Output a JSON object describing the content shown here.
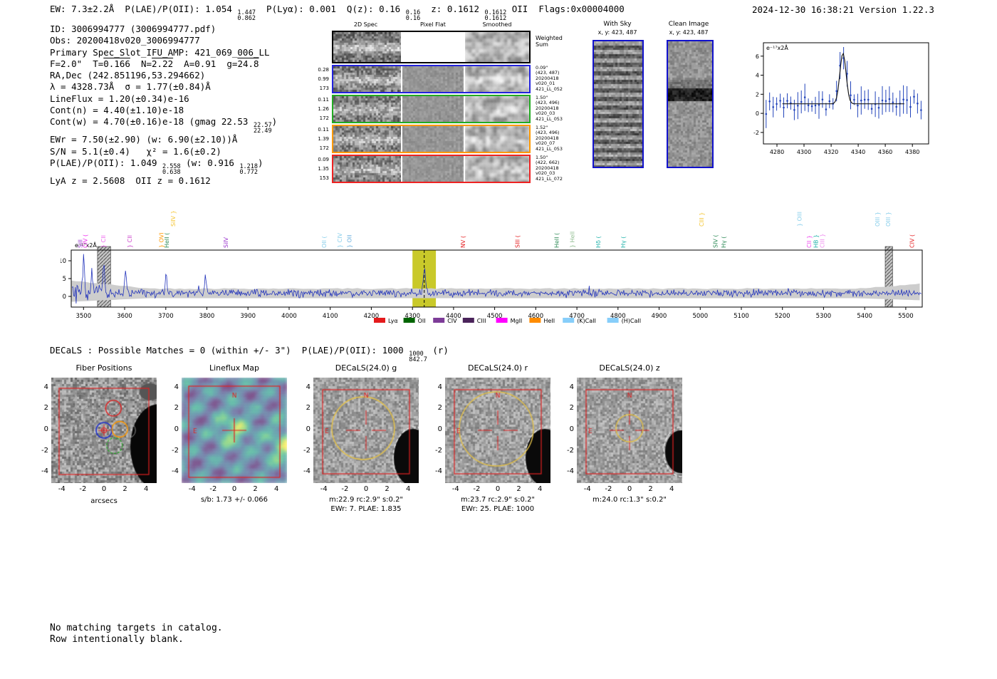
{
  "header": {
    "tokens": [
      {
        "t": "EW: 7.3±2.2Å  P(LAE)/P(OII): 1.054 "
      },
      {
        "s": [
          "1.447",
          "0.862"
        ]
      },
      {
        "t": "  P(Lyα): 0.001  Q(z): 0.16 "
      },
      {
        "s": [
          "0.16",
          "0.16"
        ]
      },
      {
        "t": "  z: 0.1612 "
      },
      {
        "s": [
          "0.1612",
          "0.1612"
        ]
      },
      {
        "t": " OII  Flags:0x00004000"
      }
    ],
    "timestamp": "2024-12-30 16:38:21  Version 1.22.3"
  },
  "info": {
    "lines": [
      [
        {
          "t": "ID: 3006994777 (3006994777.pdf)"
        }
      ],
      [
        {
          "t": "Obs: 20200418v020_3006994777"
        }
      ],
      [
        {
          "t": "Primary Spec_Slot_IFU_AMP: 421_069_006_LL"
        }
      ],
      [
        {
          "t": "F=2.0\"  T="
        },
        {
          "o": "0.166"
        },
        {
          "t": "  N="
        },
        {
          "o": "2.22"
        },
        {
          "t": "  A=0.91  g="
        },
        {
          "o": "24.8"
        }
      ],
      [
        {
          "t": "RA,Dec (242.851196,53.294662)"
        }
      ],
      [
        {
          "t": "λ = 4328.73Å  σ = 1.77(±0.84)Å"
        }
      ],
      [
        {
          "t": "LineFlux = 1.20(±0.34)e-16"
        }
      ],
      [
        {
          "t": "Cont(n) = 4.40(±1.10)e-18"
        }
      ],
      [
        {
          "t": "Cont(w) = 4.70(±0.16)e-18 (gmag 22.53 "
        },
        {
          "s": [
            "22.57",
            "22.49"
          ]
        },
        {
          "t": ")"
        }
      ],
      [
        {
          "t": "EWr = 7.50(±2.90) (w: 6.90(±2.10))Å"
        }
      ],
      [
        {
          "t": "S/N = 5.1(±0.4)   χ² = 1.6(±0.2)"
        }
      ],
      [
        {
          "t": "P(LAE)/P(OII): 1.049 "
        },
        {
          "s": [
            "2.558",
            "0.638"
          ]
        },
        {
          "t": " (w: 0.916 "
        },
        {
          "s": [
            "1.218",
            "0.772"
          ]
        },
        {
          "t": ")"
        }
      ],
      [
        {
          "t": "LyA z = 2.5608  OII z = 0.1612"
        }
      ]
    ]
  },
  "spec2d": {
    "col_titles": [
      "2D Spec",
      "Pixel Flat",
      "Smoothed"
    ],
    "weighted_label": [
      "Weighted",
      "Sum"
    ],
    "rows": [
      {
        "left": [
          "0.28",
          "0.99",
          "173"
        ],
        "right": [
          "0.09\"",
          "(423, 487)",
          "20200418",
          "v020_01",
          "421_LL_052"
        ],
        "color": "#2222dd"
      },
      {
        "left": [
          "0.11",
          "1.26",
          "172"
        ],
        "right": [
          "1.50\"",
          "(423, 496)",
          "20200418",
          "v020_03",
          "421_LL_053"
        ],
        "color": "#22aa22"
      },
      {
        "left": [
          "0.11",
          "1.39",
          "172"
        ],
        "right": [
          "1.52\"",
          "(423, 496)",
          "20200418",
          "v020_07",
          "421_LL_053"
        ],
        "color": "#ff9900"
      },
      {
        "left": [
          "0.09",
          "1.35",
          "153"
        ],
        "right": [
          "1.50\"",
          "(422, 662)",
          "20200418",
          "v020_03",
          "421_LL_072"
        ],
        "color": "#ee2222"
      }
    ]
  },
  "withsky": {
    "title": "With Sky",
    "coords": "x, y: 423, 487"
  },
  "clean": {
    "title": "Clean Image",
    "coords": "x, y: 423, 487"
  },
  "decals": {
    "tokens": [
      {
        "t": "DECaLS : Possible Matches = 0 (within +/- 3\")  P(LAE)/P(OII): 1000 "
      },
      {
        "s": [
          "1000",
          "842.7"
        ]
      },
      {
        "t": " (r)"
      }
    ]
  },
  "cutouts": {
    "axis_ticks": [
      "-4",
      "-2",
      "0",
      "2",
      "4"
    ],
    "panels": [
      {
        "title": "Fiber Positions",
        "xlabel": "arcsecs",
        "captions": []
      },
      {
        "title": "Lineflux Map",
        "captions": [
          "s/b: 1.73 +/- 0.066"
        ]
      },
      {
        "title": "DECaLS(24.0) g",
        "captions": [
          "m:22.9 rc:2.9\"  s:0.2\"",
          "EWr: 7. PLAE: 1.835"
        ]
      },
      {
        "title": "DECaLS(24.0) r",
        "captions": [
          "m:23.7 rc:2.9\"  s:0.2\"",
          "EWr: 25. PLAE: 1000"
        ]
      },
      {
        "title": "DECaLS(24.0) z",
        "captions": [
          "m:24.0 rc:1.3\"  s:0.2\""
        ]
      }
    ]
  },
  "footer": {
    "lines": [
      "No matching targets in catalog.",
      "Row intentionally blank."
    ]
  },
  "chart_data": [
    {
      "type": "scatter",
      "name": "emission-line-fit-zoom",
      "annotation": "e⁻¹⁷x2Å",
      "xlim": [
        4270,
        4392
      ],
      "ylim": [
        -3.2,
        7.4
      ],
      "xticks": [
        4280,
        4300,
        4320,
        4340,
        4360,
        4380
      ],
      "yticks": [
        -2,
        0,
        2,
        4,
        6
      ],
      "fit": {
        "center": 4328.73,
        "sigma": 2.3,
        "amplitude": 5.3,
        "baseline": 1.0
      },
      "reported_line": {
        "wavelength": 4328.73,
        "sigma": 1.77,
        "lineflux": "1.20e-16",
        "snr": 5.1
      },
      "point_color": "#2244bb",
      "fit_color": "#1a1a1a"
    },
    {
      "type": "line",
      "name": "full-spectrum",
      "annotation": "e⁻¹⁷x2Å",
      "xlim": [
        3470,
        5540
      ],
      "ylim": [
        -3,
        13
      ],
      "xticks": [
        3500,
        3600,
        3700,
        3800,
        3900,
        4000,
        4100,
        4200,
        4300,
        4400,
        4500,
        4600,
        4700,
        4800,
        4900,
        5000,
        5100,
        5200,
        5300,
        5400,
        5500
      ],
      "yticks": [
        0,
        5,
        10
      ],
      "trace_color": "#2233bb",
      "noise_band_color": "#cdcdcd",
      "highlight_band": {
        "x0": 4300,
        "x1": 4357,
        "color": "#c9c92a"
      },
      "hatch_bands": [
        [
          3534,
          3566
        ],
        [
          5450,
          5468
        ]
      ],
      "vline": 4328.73,
      "peaks": [
        [
          3500,
          10.5,
          2.2
        ],
        [
          3521,
          6.5,
          2
        ],
        [
          3549,
          7.5,
          2
        ],
        [
          3602,
          6.8,
          2
        ],
        [
          3701,
          5.6,
          2
        ],
        [
          3797,
          4.6,
          2
        ],
        [
          4328.73,
          6.3,
          3
        ]
      ],
      "line_labels": [
        {
          "x": 3497,
          "text": "SiII",
          "color": "#9933cc",
          "row": 0
        },
        {
          "x": 3509,
          "text": "CIV (",
          "color": "#ee22ee",
          "row": 0
        },
        {
          "x": 3553,
          "text": "} CII",
          "color": "#ee66ee",
          "row": 0
        },
        {
          "x": 3617,
          "text": "} CII",
          "color": "#cc44cc",
          "row": 0
        },
        {
          "x": 3694,
          "text": "} OVI",
          "color": "#ff9900",
          "row": 0
        },
        {
          "x": 3707,
          "text": "HeII (",
          "color": "#2e8b57",
          "row": 0
        },
        {
          "x": 3723,
          "text": "SiIV }",
          "color": "#f4c430",
          "row": 1
        },
        {
          "x": 3851,
          "text": "SiIV",
          "color": "#9933cc",
          "row": 0
        },
        {
          "x": 4090,
          "text": "OII (",
          "color": "#87ceeb",
          "row": 0
        },
        {
          "x": 4128,
          "text": "} CIV",
          "color": "#87ceeb",
          "row": 0
        },
        {
          "x": 4152,
          "text": "} OII",
          "color": "#6ab0de",
          "row": 0
        },
        {
          "x": 4428,
          "text": "NV (",
          "color": "#e41a1c",
          "row": 0
        },
        {
          "x": 4560,
          "text": "SIII (",
          "color": "#e41a1c",
          "row": 0
        },
        {
          "x": 4656,
          "text": "HeII (",
          "color": "#2e8b57",
          "row": 0
        },
        {
          "x": 4694,
          "text": "} HeII",
          "color": "#8fbc8f",
          "row": 0
        },
        {
          "x": 4757,
          "text": "Hδ (",
          "color": "#20b2aa",
          "row": 0
        },
        {
          "x": 4818,
          "text": "Hγ (",
          "color": "#20b2aa",
          "row": 0
        },
        {
          "x": 5008,
          "text": "CIII }",
          "color": "#f4c430",
          "row": 1
        },
        {
          "x": 5042,
          "text": "SIV (",
          "color": "#2e8b57",
          "row": 0
        },
        {
          "x": 5062,
          "text": "Hγ (",
          "color": "#2e8b57",
          "row": 0
        },
        {
          "x": 5246,
          "text": "} OIII",
          "color": "#87ceeb",
          "row": 1
        },
        {
          "x": 5270,
          "text": "CII }",
          "color": "#ee44ee",
          "row": 0
        },
        {
          "x": 5286,
          "text": "HB }",
          "color": "#20b2aa",
          "row": 0
        },
        {
          "x": 5302,
          "text": "CIII }",
          "color": "#ee88ee",
          "row": 0
        },
        {
          "x": 5436,
          "text": "OIII }",
          "color": "#87ceeb",
          "row": 1
        },
        {
          "x": 5462,
          "text": "OIII }",
          "color": "#87ceeb",
          "row": 1
        },
        {
          "x": 5520,
          "text": "CIV (",
          "color": "#e41a1c",
          "row": 0
        }
      ],
      "legend": [
        {
          "label": "Lyα",
          "color": "#e41a1c"
        },
        {
          "label": "OII",
          "color": "#006400"
        },
        {
          "label": "CIV",
          "color": "#7d3c98"
        },
        {
          "label": "CIII",
          "color": "#4a235a"
        },
        {
          "label": "MgII",
          "color": "#ff00ff"
        },
        {
          "label": "HeII",
          "color": "#ff8c00"
        },
        {
          "label": "(K)CaII",
          "color": "#87cefa"
        },
        {
          "label": "(H)CaII",
          "color": "#87cefa"
        }
      ]
    }
  ]
}
